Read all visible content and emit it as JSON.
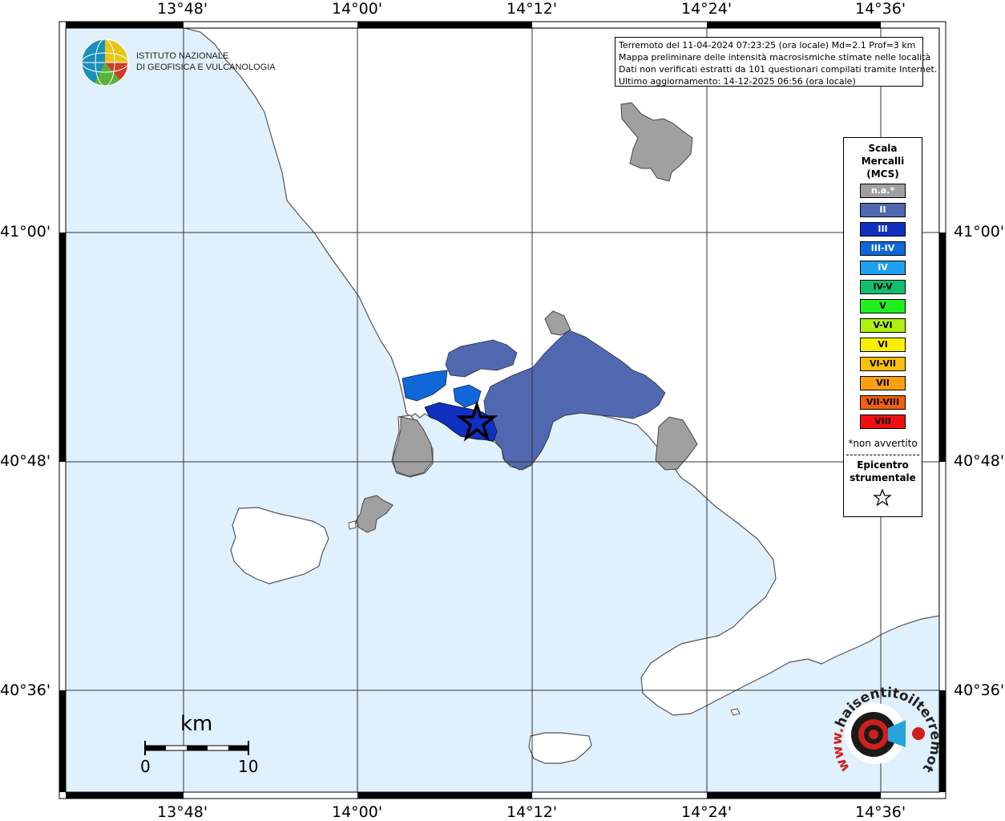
{
  "map": {
    "top_labels": [
      "13°48'",
      "14°00'",
      "14°12'",
      "14°24'",
      "14°36'"
    ],
    "bottom_labels": [
      "13°48'",
      "14°00'",
      "14°12'",
      "14°24'",
      "14°36'"
    ],
    "left_labels": [
      "41°00'",
      "40°48'",
      "40°36'"
    ],
    "right_labels": [
      "41°00'",
      "40°48'",
      "40°36'"
    ],
    "colors": {
      "sea": "#e0f0fc",
      "land": "#ffffff",
      "coast": "#555555",
      "grid": "#333333"
    }
  },
  "logo": {
    "line1": "ISTITUTO NAZIONALE",
    "line2": "DI GEOFISICA E VULCANOLOGIA"
  },
  "info": {
    "line1": "Terremoto del 11-04-2024 07:23:25 (ora locale) Md=2.1 Prof=3 km",
    "line2": "Mappa preliminare delle intensità macrosismiche stimate nelle località",
    "line3": "Dati non verificati estratti da 101 questionari compilati tramite Internet.",
    "line4": "Ultimo aggiornamento: 14-12-2025 06:56 (ora locale)"
  },
  "legend": {
    "title1": "Scala",
    "title2": "Mercalli",
    "title3": "(MCS)",
    "items": [
      {
        "label": "n.a.*",
        "color": "#a0a0a0",
        "text_color": "#ffffff"
      },
      {
        "label": "II",
        "color": "#5068b0",
        "text_color": "#ffffff"
      },
      {
        "label": "III",
        "color": "#1030c0",
        "text_color": "#ffffff"
      },
      {
        "label": "III-IV",
        "color": "#1068d8",
        "text_color": "#ffffff"
      },
      {
        "label": "IV",
        "color": "#20a0f0",
        "text_color": "#ffffff"
      },
      {
        "label": "IV-V",
        "color": "#10c070",
        "text_color": "#000000"
      },
      {
        "label": "V",
        "color": "#20f020",
        "text_color": "#000000"
      },
      {
        "label": "V-VI",
        "color": "#b0f010",
        "text_color": "#000000"
      },
      {
        "label": "VI",
        "color": "#f8f000",
        "text_color": "#000000"
      },
      {
        "label": "VI-VII",
        "color": "#f8c000",
        "text_color": "#000000"
      },
      {
        "label": "VII",
        "color": "#f8a010",
        "text_color": "#000000"
      },
      {
        "label": "VII-VIII",
        "color": "#f06010",
        "text_color": "#000000"
      },
      {
        "label": "VIII",
        "color": "#f01010",
        "text_color": "#000000"
      }
    ],
    "note": "*non avvertito",
    "epicentre1": "Epicentro",
    "epicentre2": "strumentale"
  },
  "scale_bar": {
    "unit": "km",
    "start": "0",
    "end": "10"
  },
  "badge": {
    "text": "haisentitoilterremoto.it",
    "prefix": "www."
  }
}
